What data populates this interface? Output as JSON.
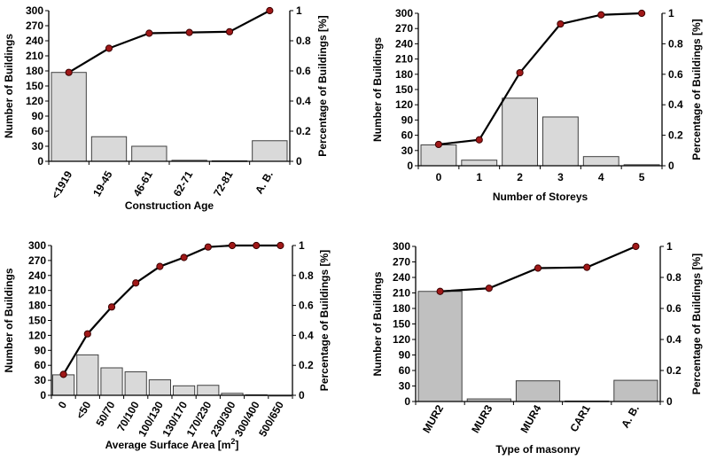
{
  "chart_data": [
    {
      "type": "bar",
      "xlabel": "Construction Age",
      "ylabel": "Number of Buildings",
      "y2label": "Percentage of Buildings [%]",
      "ylim": [
        0,
        300
      ],
      "y2lim": [
        0,
        1
      ],
      "yticks": [
        "0",
        "30",
        "60",
        "90",
        "120",
        "150",
        "180",
        "210",
        "240",
        "270",
        "300"
      ],
      "y2ticks": [
        "0",
        "0.2",
        "0.4",
        "0.6",
        "0.8",
        "1"
      ],
      "categories": [
        "<1919",
        "19-45",
        "46-61",
        "62-71",
        "72-81",
        "A. B."
      ],
      "values": [
        177,
        49,
        30,
        2,
        1,
        41
      ],
      "cumulative": [
        0.59,
        0.75,
        0.85,
        0.855,
        0.86,
        1.0
      ],
      "rotate_ticks": true,
      "grid": false
    },
    {
      "type": "bar",
      "xlabel": "Number of Storeys",
      "ylabel": "Number of Buildings",
      "y2label": "Percentage of Buildings [%]",
      "ylim": [
        0,
        300
      ],
      "y2lim": [
        0,
        1
      ],
      "yticks": [
        "0",
        "30",
        "60",
        "90",
        "120",
        "150",
        "180",
        "210",
        "240",
        "270",
        "300"
      ],
      "y2ticks": [
        "0",
        "0.2",
        "0.4",
        "0.6",
        "0.8",
        "1"
      ],
      "categories": [
        "0",
        "1",
        "2",
        "3",
        "4",
        "5"
      ],
      "values": [
        41,
        11,
        133,
        96,
        18,
        2
      ],
      "cumulative": [
        0.14,
        0.17,
        0.61,
        0.93,
        0.99,
        1.0
      ],
      "rotate_ticks": false,
      "grid": false
    },
    {
      "type": "bar",
      "xlabel": "Average Surface Area [m",
      "xlabel_sup": "2",
      "xlabel_end": "]",
      "ylabel": "Number of Buildings",
      "y2label": "Percentage of Buildings [%]",
      "ylim": [
        0,
        300
      ],
      "y2lim": [
        0,
        1
      ],
      "yticks": [
        "0",
        "30",
        "60",
        "90",
        "120",
        "150",
        "180",
        "210",
        "240",
        "270",
        "300"
      ],
      "y2ticks": [
        "0",
        "0.2",
        "0.4",
        "0.6",
        "0.8",
        "1"
      ],
      "categories": [
        "0",
        "<50",
        "50/70",
        "70/100",
        "100/130",
        "130/170",
        "170/230",
        "230/300",
        "300/400",
        "500/650"
      ],
      "values": [
        41,
        81,
        55,
        47,
        31,
        19,
        20,
        4,
        1,
        0
      ],
      "cumulative": [
        0.14,
        0.41,
        0.59,
        0.75,
        0.86,
        0.92,
        0.99,
        1.0,
        1.0,
        1.0
      ],
      "rotate_ticks": true,
      "grid": false
    },
    {
      "type": "bar",
      "xlabel": "Type of masonry",
      "ylabel": "Number of Buildings",
      "y2label": "Percentage of Buildings [%]",
      "ylim": [
        0,
        300
      ],
      "y2lim": [
        0,
        1
      ],
      "yticks": [
        "0",
        "30",
        "60",
        "90",
        "120",
        "150",
        "180",
        "210",
        "240",
        "270",
        "300"
      ],
      "y2ticks": [
        "0",
        "0.2",
        "0.4",
        "0.6",
        "0.8",
        "1"
      ],
      "categories": [
        "MUR2",
        "MUR3",
        "MUR4",
        "CAR1",
        "A. B."
      ],
      "values": [
        213,
        5,
        40,
        1,
        41
      ],
      "cumulative": [
        0.71,
        0.73,
        0.86,
        0.865,
        1.0
      ],
      "rotate_ticks": true,
      "grid": false
    }
  ],
  "colors": {
    "bar_fill": "#d9d9d9",
    "bar_fill_masonry": "#c0c0c0",
    "bar_stroke": "#404040",
    "line": "#000000",
    "marker_fill": "#a01818",
    "marker_stroke": "#3a0000"
  }
}
